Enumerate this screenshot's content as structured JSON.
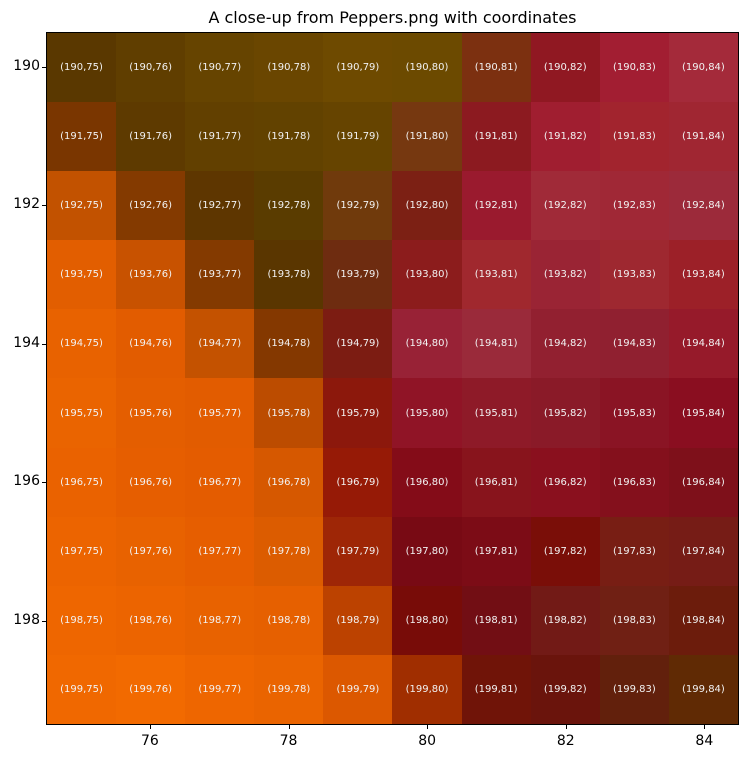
{
  "chart_data": {
    "type": "heatmap",
    "title": "A close-up from Peppers.png with coordinates",
    "xlabel": "",
    "ylabel": "",
    "x": [
      75,
      76,
      77,
      78,
      79,
      80,
      81,
      82,
      83,
      84
    ],
    "y": [
      190,
      191,
      192,
      193,
      194,
      195,
      196,
      197,
      198,
      199
    ],
    "xticks": [
      "76",
      "78",
      "80",
      "82",
      "84"
    ],
    "yticks": [
      "190",
      "192",
      "194",
      "196",
      "198"
    ],
    "xlim": [
      74.5,
      84.5
    ],
    "ylim": [
      199.5,
      189.5
    ],
    "grid": false,
    "cell_label_format": "(row,col)",
    "colors": [
      [
        "#5a3800",
        "#603e00",
        "#664400",
        "#6a4600",
        "#6e4a00",
        "#6c4a00",
        "#7c3010",
        "#901822",
        "#a21e32",
        "#a42a3a"
      ],
      [
        "#7a3600",
        "#5e3a00",
        "#624000",
        "#624200",
        "#664400",
        "#763810",
        "#8c1a20",
        "#a01e30",
        "#a2242e",
        "#a02632"
      ],
      [
        "#c25200",
        "#843a00",
        "#5e3600",
        "#5a3c00",
        "#703a0c",
        "#7c2014",
        "#9a1a2e",
        "#a02a38",
        "#a02836",
        "#9c2a3a"
      ],
      [
        "#e25e00",
        "#c85200",
        "#843a00",
        "#5a3600",
        "#6e2c10",
        "#8c1c1c",
        "#a0282e",
        "#9a2434",
        "#9e2830",
        "#9c2028"
      ],
      [
        "#e86200",
        "#e25c00",
        "#c45200",
        "#843800",
        "#7c1c12",
        "#982236",
        "#9a2a3a",
        "#922030",
        "#902030",
        "#961a2a"
      ],
      [
        "#ea6400",
        "#e45e00",
        "#e25c00",
        "#bc4c00",
        "#8c180c",
        "#901426",
        "#8e1a28",
        "#8a1a28",
        "#8a1424",
        "#8a0e20"
      ],
      [
        "#ea6200",
        "#e65e00",
        "#e45c00",
        "#d65800",
        "#961a06",
        "#840c18",
        "#88141c",
        "#8a101e",
        "#84101c",
        "#7e101a"
      ],
      [
        "#ec6400",
        "#e86200",
        "#e65e00",
        "#dc5c00",
        "#9e2606",
        "#780a14",
        "#7c0c16",
        "#7a0e08",
        "#781e14",
        "#761c16"
      ],
      [
        "#ee6600",
        "#ec6400",
        "#e86200",
        "#e66000",
        "#bc4200",
        "#780c08",
        "#720e14",
        "#721a16",
        "#702014",
        "#6c1c0c"
      ],
      [
        "#f06800",
        "#f26a00",
        "#ee6600",
        "#ea6400",
        "#dc5800",
        "#a02e00",
        "#701408",
        "#6a140c",
        "#62200c",
        "#602a04"
      ]
    ]
  }
}
